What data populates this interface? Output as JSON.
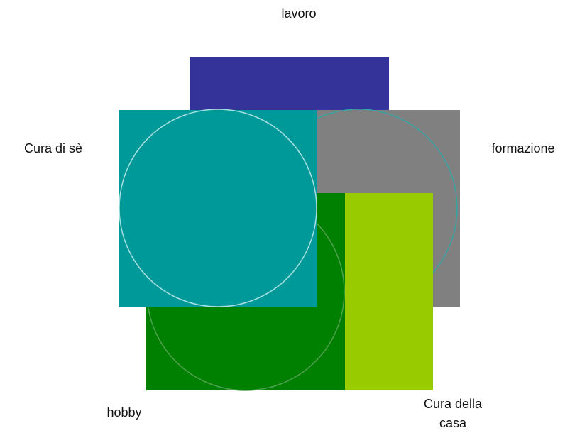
{
  "nodes": [
    {
      "label": "lavoro"
    },
    {
      "label": "Cura di sè"
    },
    {
      "label": "formazione"
    },
    {
      "label": "hobby"
    },
    {
      "label": "Cura della casa"
    }
  ]
}
